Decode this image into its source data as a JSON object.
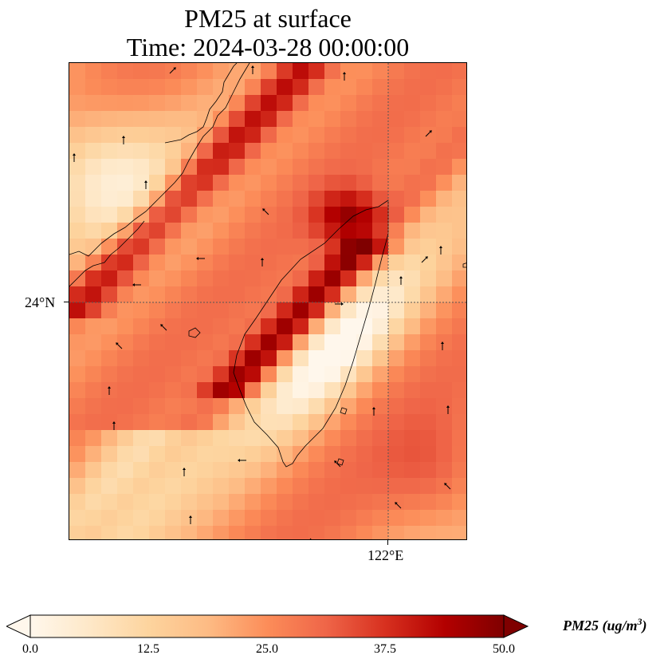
{
  "title": {
    "line1": "PM25 at surface",
    "line2": "Time: 2024-03-28 00:00:00"
  },
  "axes": {
    "lat_label": "24°N",
    "lon_label": "122°E"
  },
  "colorbar": {
    "label_main": "PM25 (ug/m",
    "label_exp": "3",
    "label_close": ")",
    "ticks": [
      "0.0",
      "12.5",
      "25.0",
      "37.5",
      "50.0"
    ],
    "min": 0,
    "max": 50,
    "extend": "both",
    "colormap": [
      "#fff7ec",
      "#fee8c8",
      "#fdd49e",
      "#fdbb84",
      "#fc8d59",
      "#ef6548",
      "#d7301f",
      "#b30000",
      "#7f0000"
    ]
  },
  "map": {
    "gridlines": "dotted",
    "features": [
      "coastline",
      "wind-vectors",
      "pm25-field"
    ]
  }
}
